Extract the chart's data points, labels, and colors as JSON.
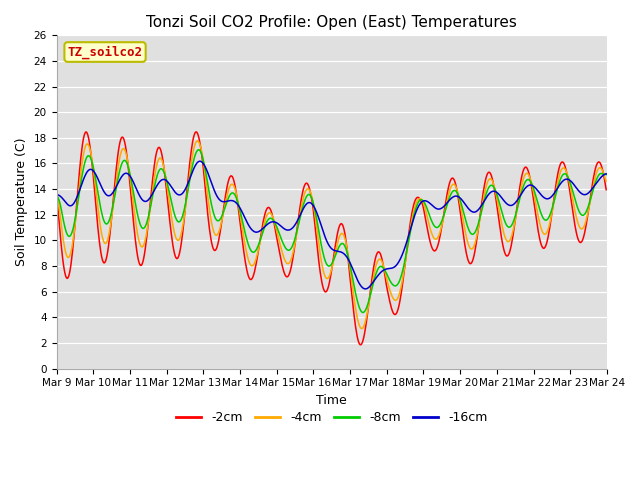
{
  "title": "Tonzi Soil CO2 Profile: Open (East) Temperatures",
  "xlabel": "Time",
  "ylabel": "Soil Temperature (C)",
  "ylim": [
    0,
    26
  ],
  "yticks": [
    0,
    2,
    4,
    6,
    8,
    10,
    12,
    14,
    16,
    18,
    20,
    22,
    24,
    26
  ],
  "legend_label": "TZ_soilco2",
  "legend_bg": "#ffffcc",
  "legend_border": "#bbbb00",
  "series_labels": [
    "-2cm",
    "-4cm",
    "-8cm",
    "-16cm"
  ],
  "series_colors": [
    "#ff0000",
    "#ffaa00",
    "#00cc00",
    "#0000cc"
  ],
  "plot_bg": "#e0e0e0",
  "start_day": 9,
  "end_day": 24,
  "n_per_day": 48,
  "grid_color": "#ffffff",
  "annotation_color": "#cc0000",
  "annotation_fontsize": 9,
  "title_fontsize": 11,
  "axis_fontsize": 9,
  "tick_fontsize": 7.5
}
